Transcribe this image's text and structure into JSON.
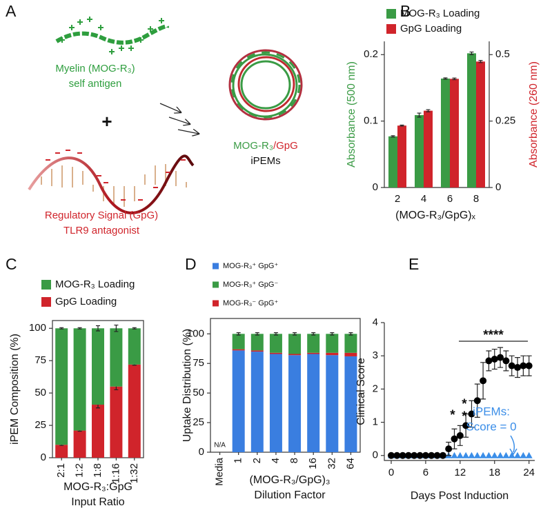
{
  "diagram": {
    "panel": "A",
    "antigen": [
      "Myelin (MOG-R₃)",
      "self antigen"
    ],
    "plus": "+",
    "signal": [
      "Regulatory Signal (GpG)",
      "TLR9 antagonist"
    ],
    "product": [
      "MOG-R₃",
      "/GpG",
      "iPEMs"
    ]
  },
  "chart_data": [
    {
      "panel": "B",
      "type": "bar",
      "categories": [
        "2",
        "4",
        "6",
        "8"
      ],
      "xlabel": "(MOG-R₃/GpG)ₓ",
      "ylabel": "Absorbance (500 nm)",
      "y2label": "Absorbance (260 nm)",
      "ylim": [
        0,
        0.22
      ],
      "yticks": [
        0,
        0.1,
        0.2
      ],
      "y2lim": [
        0,
        0.55
      ],
      "y2ticks": [
        0,
        0.25,
        0.5
      ],
      "series": [
        {
          "name": "MOG-R₃ Loading",
          "color": "#3a9b45",
          "values": [
            0.077,
            0.109,
            0.164,
            0.202
          ],
          "errors": [
            0.001,
            0.003,
            0.001,
            0.002
          ]
        },
        {
          "name": "GpG Loading",
          "color": "#d0242b",
          "axis": "y2",
          "values": [
            0.233,
            0.289,
            0.409,
            0.474
          ],
          "errors": [
            0.002,
            0.004,
            0.003,
            0.004
          ]
        }
      ]
    },
    {
      "panel": "C",
      "type": "stacked_bar",
      "categories": [
        "2:1",
        "1:2",
        "1:8",
        "1:16",
        "1:32"
      ],
      "xlabel": [
        "MOG-R₃:GpG",
        "Input Ratio"
      ],
      "ylabel": "iPEM Composition (%)",
      "ylim": [
        0,
        106
      ],
      "yticks": [
        0,
        25,
        50,
        75,
        100
      ],
      "series": [
        {
          "name": "GpG Loading",
          "color": "#d0242b",
          "values": [
            10,
            21,
            41,
            55,
            72
          ],
          "errors": [
            0.5,
            0.5,
            2.5,
            2.5,
            0.5
          ]
        },
        {
          "name": "MOG-R₃ Loading",
          "color": "#3a9b45",
          "values": [
            90,
            79,
            59,
            45,
            28
          ],
          "errors": [
            0.5,
            0.5,
            2,
            2.5,
            0.5
          ]
        }
      ]
    },
    {
      "panel": "D",
      "type": "stacked_bar",
      "categories": [
        "Media",
        "1",
        "2",
        "4",
        "8",
        "16",
        "32",
        "64"
      ],
      "xlabel": [
        "(MOG-R₃/GpG)₃",
        "Dilution Factor"
      ],
      "ylabel": "Uptake Distribution (%)",
      "ylim": [
        0,
        113
      ],
      "yticks": [
        0,
        25,
        50,
        75,
        100
      ],
      "annotation": "N/A",
      "series": [
        {
          "name": "MOG-R₃⁺ GpG⁺",
          "color": "#3a7ee0",
          "values": [
            null,
            86,
            85,
            83,
            82,
            83,
            82,
            81
          ]
        },
        {
          "name": "MOG-R₃⁻ GpG⁺",
          "color": "#d0242b",
          "values": [
            null,
            1,
            1,
            1,
            1,
            1,
            2,
            3
          ]
        },
        {
          "name": "MOG-R₃⁺ GpG⁻",
          "color": "#3a9b45",
          "values": [
            null,
            13,
            14,
            16,
            17,
            16,
            16,
            16
          ],
          "errors": [
            null,
            1,
            1,
            1,
            1,
            1,
            1,
            1
          ]
        }
      ]
    },
    {
      "panel": "E",
      "type": "scatter",
      "xlabel": "Days Post Induction",
      "ylabel": "Clinical Score",
      "xlim": [
        -1.2,
        25
      ],
      "xticks": [
        0,
        6,
        12,
        18,
        24
      ],
      "ylim": [
        -0.15,
        4
      ],
      "yticks": [
        0,
        1,
        2,
        3,
        4
      ],
      "x": [
        0,
        1,
        2,
        3,
        4,
        5,
        6,
        7,
        8,
        9,
        10,
        11,
        12,
        13,
        14,
        15,
        16,
        17,
        18,
        19,
        20,
        21,
        22,
        23,
        24
      ],
      "annotations": [
        "****",
        "*",
        "*",
        "*"
      ],
      "note": [
        "iPEMs:",
        "Score = 0"
      ],
      "series": [
        {
          "color": "#3b8ee8",
          "marker": "triangle",
          "values": [
            0,
            0,
            0,
            0,
            0,
            0,
            0,
            0,
            0,
            0,
            0,
            0,
            0,
            0,
            0,
            0,
            0,
            0,
            0,
            0,
            0,
            0,
            0,
            0,
            0
          ]
        },
        {
          "color": "#000000",
          "marker": "circle",
          "values": [
            0,
            0,
            0,
            0,
            0,
            0,
            0,
            0,
            0,
            0,
            0.2,
            0.5,
            0.6,
            0.9,
            1.25,
            1.65,
            2.25,
            2.85,
            2.9,
            2.95,
            2.85,
            2.7,
            2.65,
            2.7,
            2.7
          ],
          "errors": [
            0,
            0,
            0,
            0,
            0,
            0,
            0,
            0,
            0,
            0,
            0.2,
            0.3,
            0.3,
            0.35,
            0.4,
            0.5,
            0.55,
            0.3,
            0.3,
            0.3,
            0.3,
            0.3,
            0.3,
            0.3,
            0.3
          ]
        }
      ]
    }
  ]
}
